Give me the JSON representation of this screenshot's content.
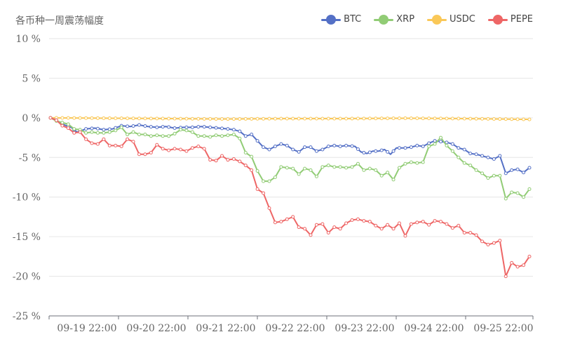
{
  "title": "各币种一周震荡幅度",
  "legend": [
    {
      "name": "BTC",
      "color": "#5470c6"
    },
    {
      "name": "XRP",
      "color": "#91cc75"
    },
    {
      "name": "USDC",
      "color": "#fac858"
    },
    {
      "name": "PEPE",
      "color": "#ee6666"
    }
  ],
  "chart_data": {
    "type": "line",
    "title": "各币种一周震荡幅度",
    "ylim": [
      -25,
      10
    ],
    "yticks": [
      10,
      5,
      0,
      -5,
      -10,
      -15,
      -20,
      -25
    ],
    "ytick_labels": [
      "10 %",
      "5 %",
      "0 %",
      "-5 %",
      "-10 %",
      "-15 %",
      "-20 %",
      "-25 %"
    ],
    "x_range": [
      "09-19 20:00",
      "09-26 00:00"
    ],
    "x_step_hours": 1,
    "xtick_labels": [
      "09-19 22:00",
      "09-20 22:00",
      "09-21 22:00",
      "09-22 22:00",
      "09-23 22:00",
      "09-24 22:00",
      "09-25 22:00"
    ],
    "grid": true,
    "legend_position": "top-right",
    "series": [
      {
        "name": "BTC",
        "color": "#5470c6",
        "keyframes": [
          [
            0,
            0
          ],
          [
            2,
            -0.3
          ],
          [
            4,
            -0.8
          ],
          [
            7,
            -1.2
          ],
          [
            9,
            -1.8
          ],
          [
            12,
            -1.4
          ],
          [
            15,
            -1.3
          ],
          [
            18,
            -1.5
          ],
          [
            21,
            -1.4
          ],
          [
            24,
            -1.0
          ],
          [
            27,
            -1.1
          ],
          [
            30,
            -0.9
          ],
          [
            33,
            -1.1
          ],
          [
            36,
            -1.2
          ],
          [
            39,
            -1.1
          ],
          [
            42,
            -1.3
          ],
          [
            45,
            -1.2
          ],
          [
            48,
            -1.2
          ],
          [
            51,
            -1.1
          ],
          [
            54,
            -1.2
          ],
          [
            57,
            -1.3
          ],
          [
            60,
            -1.4
          ],
          [
            62,
            -1.5
          ],
          [
            64,
            -1.7
          ],
          [
            66,
            -2.3
          ],
          [
            68,
            -2.1
          ],
          [
            70,
            -2.9
          ],
          [
            72,
            -3.7
          ],
          [
            74,
            -4.0
          ],
          [
            76,
            -3.6
          ],
          [
            78,
            -3.3
          ],
          [
            80,
            -3.5
          ],
          [
            82,
            -4.0
          ],
          [
            84,
            -4.3
          ],
          [
            86,
            -3.7
          ],
          [
            88,
            -3.7
          ],
          [
            90,
            -4.2
          ],
          [
            92,
            -4.0
          ],
          [
            94,
            -3.6
          ],
          [
            96,
            -3.5
          ],
          [
            98,
            -3.6
          ],
          [
            100,
            -3.5
          ],
          [
            103,
            -3.6
          ],
          [
            105,
            -4.3
          ],
          [
            107,
            -4.5
          ],
          [
            109,
            -4.2
          ],
          [
            111,
            -4.2
          ],
          [
            113,
            -4.0
          ],
          [
            115,
            -4.6
          ],
          [
            117,
            -3.8
          ],
          [
            120,
            -3.8
          ],
          [
            122,
            -3.7
          ],
          [
            124,
            -3.5
          ],
          [
            126,
            -3.6
          ],
          [
            128,
            -3.2
          ],
          [
            130,
            -2.9
          ],
          [
            132,
            -3.0
          ],
          [
            134,
            -3.1
          ],
          [
            136,
            -3.3
          ],
          [
            138,
            -3.8
          ],
          [
            140,
            -4.0
          ],
          [
            142,
            -4.5
          ],
          [
            144,
            -4.6
          ],
          [
            146,
            -4.8
          ],
          [
            148,
            -5.0
          ],
          [
            150,
            -5.2
          ],
          [
            152,
            -4.8
          ],
          [
            154,
            -7.0
          ],
          [
            156,
            -6.6
          ],
          [
            158,
            -6.5
          ],
          [
            160,
            -6.9
          ],
          [
            162,
            -6.3
          ]
        ]
      },
      {
        "name": "XRP",
        "color": "#91cc75",
        "keyframes": [
          [
            0,
            0
          ],
          [
            2,
            -0.4
          ],
          [
            4,
            -0.6
          ],
          [
            6,
            -0.8
          ],
          [
            8,
            -1.4
          ],
          [
            10,
            -1.5
          ],
          [
            12,
            -1.9
          ],
          [
            14,
            -1.8
          ],
          [
            16,
            -1.9
          ],
          [
            18,
            -1.9
          ],
          [
            20,
            -1.8
          ],
          [
            22,
            -1.6
          ],
          [
            24,
            -1.2
          ],
          [
            26,
            -2.1
          ],
          [
            28,
            -1.8
          ],
          [
            30,
            -2.1
          ],
          [
            32,
            -2.1
          ],
          [
            34,
            -2.3
          ],
          [
            36,
            -2.2
          ],
          [
            38,
            -2.3
          ],
          [
            40,
            -2.3
          ],
          [
            42,
            -2.0
          ],
          [
            44,
            -1.5
          ],
          [
            46,
            -1.6
          ],
          [
            48,
            -1.8
          ],
          [
            50,
            -2.3
          ],
          [
            52,
            -2.3
          ],
          [
            54,
            -2.4
          ],
          [
            56,
            -2.2
          ],
          [
            58,
            -2.3
          ],
          [
            60,
            -2.2
          ],
          [
            62,
            -2.1
          ],
          [
            64,
            -2.6
          ],
          [
            66,
            -4.4
          ],
          [
            68,
            -4.9
          ],
          [
            70,
            -6.7
          ],
          [
            72,
            -8.0
          ],
          [
            74,
            -8.0
          ],
          [
            76,
            -7.5
          ],
          [
            78,
            -6.2
          ],
          [
            80,
            -6.3
          ],
          [
            82,
            -6.4
          ],
          [
            84,
            -7.1
          ],
          [
            86,
            -6.4
          ],
          [
            88,
            -6.6
          ],
          [
            90,
            -7.4
          ],
          [
            92,
            -6.2
          ],
          [
            94,
            -6.0
          ],
          [
            96,
            -6.2
          ],
          [
            98,
            -6.2
          ],
          [
            100,
            -6.3
          ],
          [
            102,
            -6.2
          ],
          [
            104,
            -5.8
          ],
          [
            106,
            -6.6
          ],
          [
            108,
            -6.4
          ],
          [
            110,
            -6.6
          ],
          [
            112,
            -7.3
          ],
          [
            114,
            -6.9
          ],
          [
            116,
            -7.8
          ],
          [
            118,
            -6.3
          ],
          [
            120,
            -5.8
          ],
          [
            122,
            -5.6
          ],
          [
            124,
            -5.7
          ],
          [
            126,
            -5.6
          ],
          [
            128,
            -3.6
          ],
          [
            130,
            -3.3
          ],
          [
            132,
            -2.5
          ],
          [
            134,
            -3.5
          ],
          [
            136,
            -4.2
          ],
          [
            138,
            -5.0
          ],
          [
            140,
            -5.7
          ],
          [
            142,
            -6.0
          ],
          [
            144,
            -6.6
          ],
          [
            146,
            -7.0
          ],
          [
            148,
            -7.6
          ],
          [
            150,
            -7.3
          ],
          [
            152,
            -7.3
          ],
          [
            154,
            -10.2
          ],
          [
            156,
            -9.4
          ],
          [
            158,
            -9.5
          ],
          [
            160,
            -10.0
          ],
          [
            162,
            -9.0
          ]
        ]
      },
      {
        "name": "USDC",
        "color": "#fac858",
        "keyframes": [
          [
            0,
            0
          ],
          [
            20,
            -0.05
          ],
          [
            40,
            -0.1
          ],
          [
            60,
            -0.15
          ],
          [
            80,
            -0.1
          ],
          [
            100,
            -0.1
          ],
          [
            120,
            -0.05
          ],
          [
            140,
            -0.1
          ],
          [
            152,
            -0.15
          ],
          [
            162,
            -0.2
          ]
        ]
      },
      {
        "name": "PEPE",
        "color": "#ee6666",
        "keyframes": [
          [
            0,
            0
          ],
          [
            2,
            -0.3
          ],
          [
            4,
            -1.0
          ],
          [
            6,
            -1.3
          ],
          [
            8,
            -1.9
          ],
          [
            10,
            -1.8
          ],
          [
            12,
            -2.7
          ],
          [
            14,
            -3.2
          ],
          [
            16,
            -3.3
          ],
          [
            18,
            -2.7
          ],
          [
            20,
            -3.5
          ],
          [
            22,
            -3.5
          ],
          [
            24,
            -3.6
          ],
          [
            26,
            -2.7
          ],
          [
            28,
            -3.0
          ],
          [
            30,
            -4.6
          ],
          [
            32,
            -4.6
          ],
          [
            34,
            -4.4
          ],
          [
            36,
            -3.4
          ],
          [
            38,
            -3.9
          ],
          [
            40,
            -4.1
          ],
          [
            42,
            -3.9
          ],
          [
            44,
            -4.0
          ],
          [
            46,
            -4.2
          ],
          [
            48,
            -3.8
          ],
          [
            50,
            -3.6
          ],
          [
            52,
            -3.9
          ],
          [
            54,
            -5.3
          ],
          [
            56,
            -5.4
          ],
          [
            58,
            -4.8
          ],
          [
            60,
            -5.3
          ],
          [
            62,
            -5.2
          ],
          [
            64,
            -5.5
          ],
          [
            66,
            -6.0
          ],
          [
            68,
            -6.6
          ],
          [
            70,
            -9.0
          ],
          [
            72,
            -9.5
          ],
          [
            74,
            -11.4
          ],
          [
            76,
            -13.2
          ],
          [
            78,
            -13.1
          ],
          [
            80,
            -12.8
          ],
          [
            82,
            -12.5
          ],
          [
            84,
            -13.8
          ],
          [
            86,
            -14.0
          ],
          [
            88,
            -14.8
          ],
          [
            90,
            -13.5
          ],
          [
            92,
            -13.4
          ],
          [
            94,
            -14.5
          ],
          [
            96,
            -13.8
          ],
          [
            98,
            -14.0
          ],
          [
            100,
            -13.3
          ],
          [
            102,
            -12.9
          ],
          [
            104,
            -12.8
          ],
          [
            106,
            -13.0
          ],
          [
            108,
            -13.1
          ],
          [
            110,
            -13.6
          ],
          [
            112,
            -14.0
          ],
          [
            114,
            -13.5
          ],
          [
            116,
            -14.0
          ],
          [
            118,
            -13.3
          ],
          [
            120,
            -14.9
          ],
          [
            122,
            -13.4
          ],
          [
            124,
            -13.2
          ],
          [
            126,
            -13.1
          ],
          [
            128,
            -13.5
          ],
          [
            130,
            -13.0
          ],
          [
            132,
            -13.1
          ],
          [
            134,
            -13.4
          ],
          [
            136,
            -13.9
          ],
          [
            138,
            -13.6
          ],
          [
            140,
            -14.5
          ],
          [
            142,
            -14.5
          ],
          [
            144,
            -14.8
          ],
          [
            146,
            -15.6
          ],
          [
            148,
            -16.0
          ],
          [
            150,
            -15.8
          ],
          [
            152,
            -15.5
          ],
          [
            154,
            -20.0
          ],
          [
            156,
            -18.3
          ],
          [
            158,
            -18.8
          ],
          [
            160,
            -18.6
          ],
          [
            162,
            -17.5
          ]
        ]
      }
    ]
  }
}
